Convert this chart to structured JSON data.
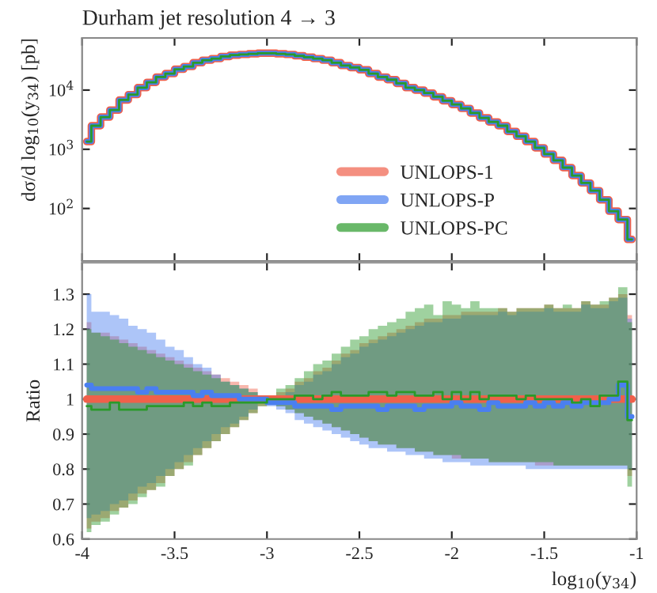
{
  "chart_data": [
    {
      "type": "step",
      "title": "Durham jet resolution 4 → 3",
      "ylabel": "dσ/d log$_{10}$(y$_{34}$) [pb]",
      "log": "y",
      "legend": "bottom right",
      "tick_labels": "y",
      "grid": false,
      "x": [
        -3.975,
        -3.925,
        -3.875,
        -3.825,
        -3.775,
        -3.725,
        -3.675,
        -3.625,
        -3.575,
        -3.525,
        -3.475,
        -3.425,
        -3.375,
        -3.325,
        -3.275,
        -3.225,
        -3.175,
        -3.125,
        -3.075,
        -3.025,
        -2.975,
        -2.925,
        -2.875,
        -2.825,
        -2.775,
        -2.725,
        -2.675,
        -2.625,
        -2.575,
        -2.525,
        -2.475,
        -2.425,
        -2.375,
        -2.325,
        -2.275,
        -2.225,
        -2.175,
        -2.125,
        -2.075,
        -2.025,
        -1.975,
        -1.925,
        -1.875,
        -1.825,
        -1.775,
        -1.725,
        -1.675,
        -1.625,
        -1.575,
        -1.525,
        -1.475,
        -1.425,
        -1.375,
        -1.325,
        -1.275,
        -1.225,
        -1.175,
        -1.125,
        -1.075,
        -1.025
      ],
      "xlim": [
        -4,
        -1
      ],
      "xticks": [
        -4,
        -3.5,
        -3,
        -2.5,
        -2,
        -1.5,
        -1
      ],
      "ylim": [
        13,
        76000
      ],
      "yticks": [
        {
          "value": 100,
          "label": "10$^{2}$"
        },
        {
          "value": 1000,
          "label": "10$^{3}$"
        },
        {
          "value": 10000,
          "label": "10$^{4}$"
        }
      ],
      "series": [
        {
          "name": "UNLOPS-1",
          "color": "#f0604a",
          "values": [
            1350,
            2500,
            3500,
            4600,
            6800,
            8400,
            11000,
            13500,
            16600,
            19000,
            22500,
            25000,
            29000,
            32000,
            34000,
            37000,
            39000,
            40000,
            41000,
            42000,
            42000,
            41000,
            40000,
            38000,
            36000,
            34000,
            32000,
            29000,
            26000,
            24000,
            22000,
            19000,
            16600,
            15000,
            13000,
            11000,
            10000,
            8900,
            7700,
            6600,
            5700,
            4900,
            4100,
            3400,
            2900,
            2500,
            2000,
            1660,
            1350,
            1060,
            830,
            650,
            490,
            360,
            270,
            200,
            140,
            90,
            65,
            30
          ]
        },
        {
          "name": "UNLOPS-P",
          "color": "#4a7ff0",
          "values": [
            1350,
            2500,
            3500,
            4600,
            6800,
            8400,
            11000,
            13500,
            16600,
            19000,
            22500,
            25000,
            29000,
            32000,
            34000,
            37000,
            39000,
            40000,
            41000,
            42000,
            42000,
            41000,
            40000,
            38000,
            36000,
            34000,
            32000,
            29000,
            26000,
            24000,
            22000,
            19000,
            16600,
            15000,
            13000,
            11000,
            10000,
            8900,
            7700,
            6600,
            5700,
            4900,
            4100,
            3400,
            2900,
            2500,
            2000,
            1660,
            1350,
            1060,
            830,
            650,
            490,
            360,
            270,
            200,
            140,
            90,
            65,
            30
          ]
        },
        {
          "name": "UNLOPS-PC",
          "color": "#2a9a2a",
          "values": [
            1350,
            2500,
            3500,
            4600,
            6800,
            8400,
            11000,
            13500,
            16600,
            19000,
            22500,
            25000,
            29000,
            32000,
            34000,
            37000,
            39000,
            40000,
            41000,
            42000,
            42000,
            41000,
            40000,
            38000,
            36000,
            34000,
            32000,
            29000,
            26000,
            24000,
            22000,
            19000,
            16600,
            15000,
            13000,
            11000,
            10000,
            8900,
            7700,
            6600,
            5700,
            4900,
            4100,
            3400,
            2900,
            2500,
            2000,
            1660,
            1350,
            1060,
            830,
            650,
            490,
            360,
            270,
            200,
            140,
            90,
            65,
            30
          ]
        }
      ]
    },
    {
      "type": "step",
      "ylabel": "Ratio",
      "xlabel": "log$_{10}$(y$_{34}$)",
      "grid": false,
      "x": [
        -3.975,
        -3.925,
        -3.875,
        -3.825,
        -3.775,
        -3.725,
        -3.675,
        -3.625,
        -3.575,
        -3.525,
        -3.475,
        -3.425,
        -3.375,
        -3.325,
        -3.275,
        -3.225,
        -3.175,
        -3.125,
        -3.075,
        -3.025,
        -2.975,
        -2.925,
        -2.875,
        -2.825,
        -2.775,
        -2.725,
        -2.675,
        -2.625,
        -2.575,
        -2.525,
        -2.475,
        -2.425,
        -2.375,
        -2.325,
        -2.275,
        -2.225,
        -2.175,
        -2.125,
        -2.075,
        -2.025,
        -1.975,
        -1.925,
        -1.875,
        -1.825,
        -1.775,
        -1.725,
        -1.675,
        -1.625,
        -1.575,
        -1.525,
        -1.475,
        -1.425,
        -1.375,
        -1.325,
        -1.275,
        -1.225,
        -1.175,
        -1.125,
        -1.075,
        -1.025
      ],
      "xlim": [
        -4,
        -1
      ],
      "xticks": [
        -4,
        -3.5,
        -3,
        -2.5,
        -2,
        -1.5,
        -1
      ],
      "ylim": [
        0.6,
        1.39
      ],
      "yticks": [
        0.6,
        0.7,
        0.8,
        0.9,
        1,
        1.1,
        1.2,
        1.3
      ],
      "series": [
        {
          "color": "#f0604a",
          "values": [
            1,
            1,
            1,
            1,
            1,
            1,
            1,
            1,
            1,
            1,
            1,
            1,
            1,
            1,
            1,
            1,
            1,
            1,
            1,
            1,
            1,
            1,
            1,
            1,
            1,
            1,
            1,
            1,
            1,
            1,
            1,
            1,
            1,
            1,
            1,
            1,
            1,
            1,
            1,
            1,
            1,
            1,
            1,
            1,
            1,
            1,
            1,
            1,
            1,
            1,
            1,
            1,
            1,
            1,
            1,
            1,
            1,
            1,
            1,
            1
          ],
          "upper": [
            1.22,
            1.19,
            1.19,
            1.18,
            1.17,
            1.16,
            1.15,
            1.14,
            1.13,
            1.12,
            1.11,
            1.1,
            1.09,
            1.08,
            1.07,
            1.06,
            1.05,
            1.04,
            1.03,
            1.01,
            1.01,
            1.02,
            1.03,
            1.05,
            1.06,
            1.08,
            1.09,
            1.11,
            1.13,
            1.14,
            1.16,
            1.17,
            1.18,
            1.19,
            1.2,
            1.21,
            1.22,
            1.23,
            1.23,
            1.24,
            1.24,
            1.25,
            1.25,
            1.25,
            1.25,
            1.26,
            1.25,
            1.26,
            1.26,
            1.26,
            1.27,
            1.26,
            1.26,
            1.26,
            1.28,
            1.27,
            1.27,
            1.29,
            1.3,
            1.24
          ],
          "lower": [
            0.63,
            0.65,
            0.66,
            0.68,
            0.69,
            0.71,
            0.73,
            0.74,
            0.76,
            0.78,
            0.8,
            0.82,
            0.84,
            0.86,
            0.88,
            0.9,
            0.92,
            0.94,
            0.96,
            0.98,
            0.99,
            0.98,
            0.97,
            0.96,
            0.95,
            0.94,
            0.93,
            0.92,
            0.91,
            0.9,
            0.89,
            0.88,
            0.87,
            0.87,
            0.86,
            0.86,
            0.85,
            0.85,
            0.84,
            0.84,
            0.83,
            0.83,
            0.83,
            0.83,
            0.82,
            0.82,
            0.82,
            0.82,
            0.82,
            0.81,
            0.81,
            0.81,
            0.81,
            0.81,
            0.81,
            0.81,
            0.81,
            0.81,
            0.81,
            0.78
          ]
        },
        {
          "color": "#4a7ff0",
          "values": [
            1.04,
            1.03,
            1.03,
            1.03,
            1.03,
            1.03,
            1.02,
            1.03,
            1.02,
            1.02,
            1.02,
            1.02,
            1.01,
            1.02,
            1.01,
            1.01,
            1.01,
            1.0,
            1.0,
            1.0,
            0.99,
            0.99,
            0.99,
            0.98,
            0.98,
            0.98,
            0.98,
            0.97,
            0.98,
            0.98,
            0.98,
            0.98,
            0.97,
            0.98,
            0.98,
            0.98,
            0.97,
            0.98,
            0.98,
            0.98,
            0.99,
            0.98,
            0.98,
            0.97,
            0.99,
            0.98,
            0.98,
            0.98,
            0.99,
            0.98,
            0.99,
            0.98,
            0.99,
            0.98,
            0.99,
            0.99,
            0.99,
            1.0,
            1.04,
            0.95
          ],
          "upper": [
            1.3,
            1.25,
            1.25,
            1.24,
            1.23,
            1.21,
            1.2,
            1.19,
            1.17,
            1.15,
            1.14,
            1.12,
            1.1,
            1.09,
            1.07,
            1.05,
            1.04,
            1.03,
            1.02,
            1.01,
            1.0,
            1.01,
            1.02,
            1.04,
            1.05,
            1.07,
            1.08,
            1.1,
            1.12,
            1.13,
            1.15,
            1.16,
            1.17,
            1.18,
            1.19,
            1.2,
            1.21,
            1.22,
            1.22,
            1.23,
            1.23,
            1.24,
            1.24,
            1.24,
            1.24,
            1.25,
            1.24,
            1.25,
            1.25,
            1.25,
            1.26,
            1.25,
            1.25,
            1.25,
            1.27,
            1.26,
            1.26,
            1.28,
            1.29,
            1.23
          ],
          "lower": [
            0.66,
            0.67,
            0.68,
            0.7,
            0.71,
            0.73,
            0.75,
            0.76,
            0.78,
            0.8,
            0.82,
            0.84,
            0.86,
            0.88,
            0.9,
            0.92,
            0.93,
            0.95,
            0.97,
            0.99,
            0.98,
            0.97,
            0.96,
            0.94,
            0.93,
            0.92,
            0.91,
            0.9,
            0.89,
            0.88,
            0.87,
            0.86,
            0.86,
            0.85,
            0.85,
            0.84,
            0.84,
            0.83,
            0.83,
            0.82,
            0.82,
            0.82,
            0.81,
            0.81,
            0.81,
            0.81,
            0.81,
            0.81,
            0.8,
            0.8,
            0.8,
            0.8,
            0.8,
            0.8,
            0.8,
            0.8,
            0.8,
            0.8,
            0.8,
            0.8
          ]
        },
        {
          "color": "#2a9a2a",
          "values": [
            0.98,
            0.97,
            0.97,
            0.99,
            0.97,
            0.97,
            0.97,
            0.98,
            0.98,
            0.98,
            0.98,
            0.99,
            0.98,
            0.99,
            0.98,
            0.98,
            0.99,
            0.99,
            0.99,
            0.99,
            1.0,
            1.0,
            1.0,
            1.01,
            1.01,
            1.0,
            1.01,
            1.02,
            1.01,
            1.01,
            1.01,
            1.02,
            1.02,
            1.01,
            1.02,
            1.02,
            1.01,
            1.01,
            1.02,
            1.0,
            1.02,
            1.0,
            1.02,
            1.0,
            1.01,
            1.01,
            1.01,
            1.0,
            1.01,
            1.0,
            1.0,
            1.0,
            1.0,
            0.99,
            1.0,
            0.98,
            1.01,
            1.01,
            1.05,
            0.94
          ],
          "upper": [
            1.2,
            1.19,
            1.18,
            1.17,
            1.16,
            1.15,
            1.14,
            1.13,
            1.12,
            1.11,
            1.1,
            1.09,
            1.08,
            1.07,
            1.06,
            1.05,
            1.04,
            1.03,
            1.02,
            1.01,
            1.01,
            1.03,
            1.04,
            1.06,
            1.08,
            1.1,
            1.11,
            1.13,
            1.15,
            1.17,
            1.18,
            1.2,
            1.21,
            1.22,
            1.23,
            1.25,
            1.26,
            1.27,
            1.24,
            1.28,
            1.27,
            1.26,
            1.28,
            1.26,
            1.26,
            1.26,
            1.25,
            1.26,
            1.26,
            1.26,
            1.27,
            1.26,
            1.27,
            1.26,
            1.28,
            1.27,
            1.28,
            1.29,
            1.32,
            1.22
          ],
          "lower": [
            0.62,
            0.64,
            0.65,
            0.67,
            0.69,
            0.7,
            0.72,
            0.74,
            0.75,
            0.78,
            0.8,
            0.81,
            0.84,
            0.86,
            0.88,
            0.9,
            0.92,
            0.94,
            0.96,
            0.98,
            0.99,
            0.98,
            0.97,
            0.96,
            0.95,
            0.94,
            0.93,
            0.92,
            0.91,
            0.9,
            0.89,
            0.88,
            0.87,
            0.87,
            0.86,
            0.86,
            0.85,
            0.85,
            0.84,
            0.84,
            0.84,
            0.83,
            0.83,
            0.83,
            0.82,
            0.82,
            0.82,
            0.82,
            0.82,
            0.82,
            0.82,
            0.81,
            0.81,
            0.81,
            0.81,
            0.81,
            0.81,
            0.81,
            0.81,
            0.75
          ]
        }
      ]
    }
  ]
}
